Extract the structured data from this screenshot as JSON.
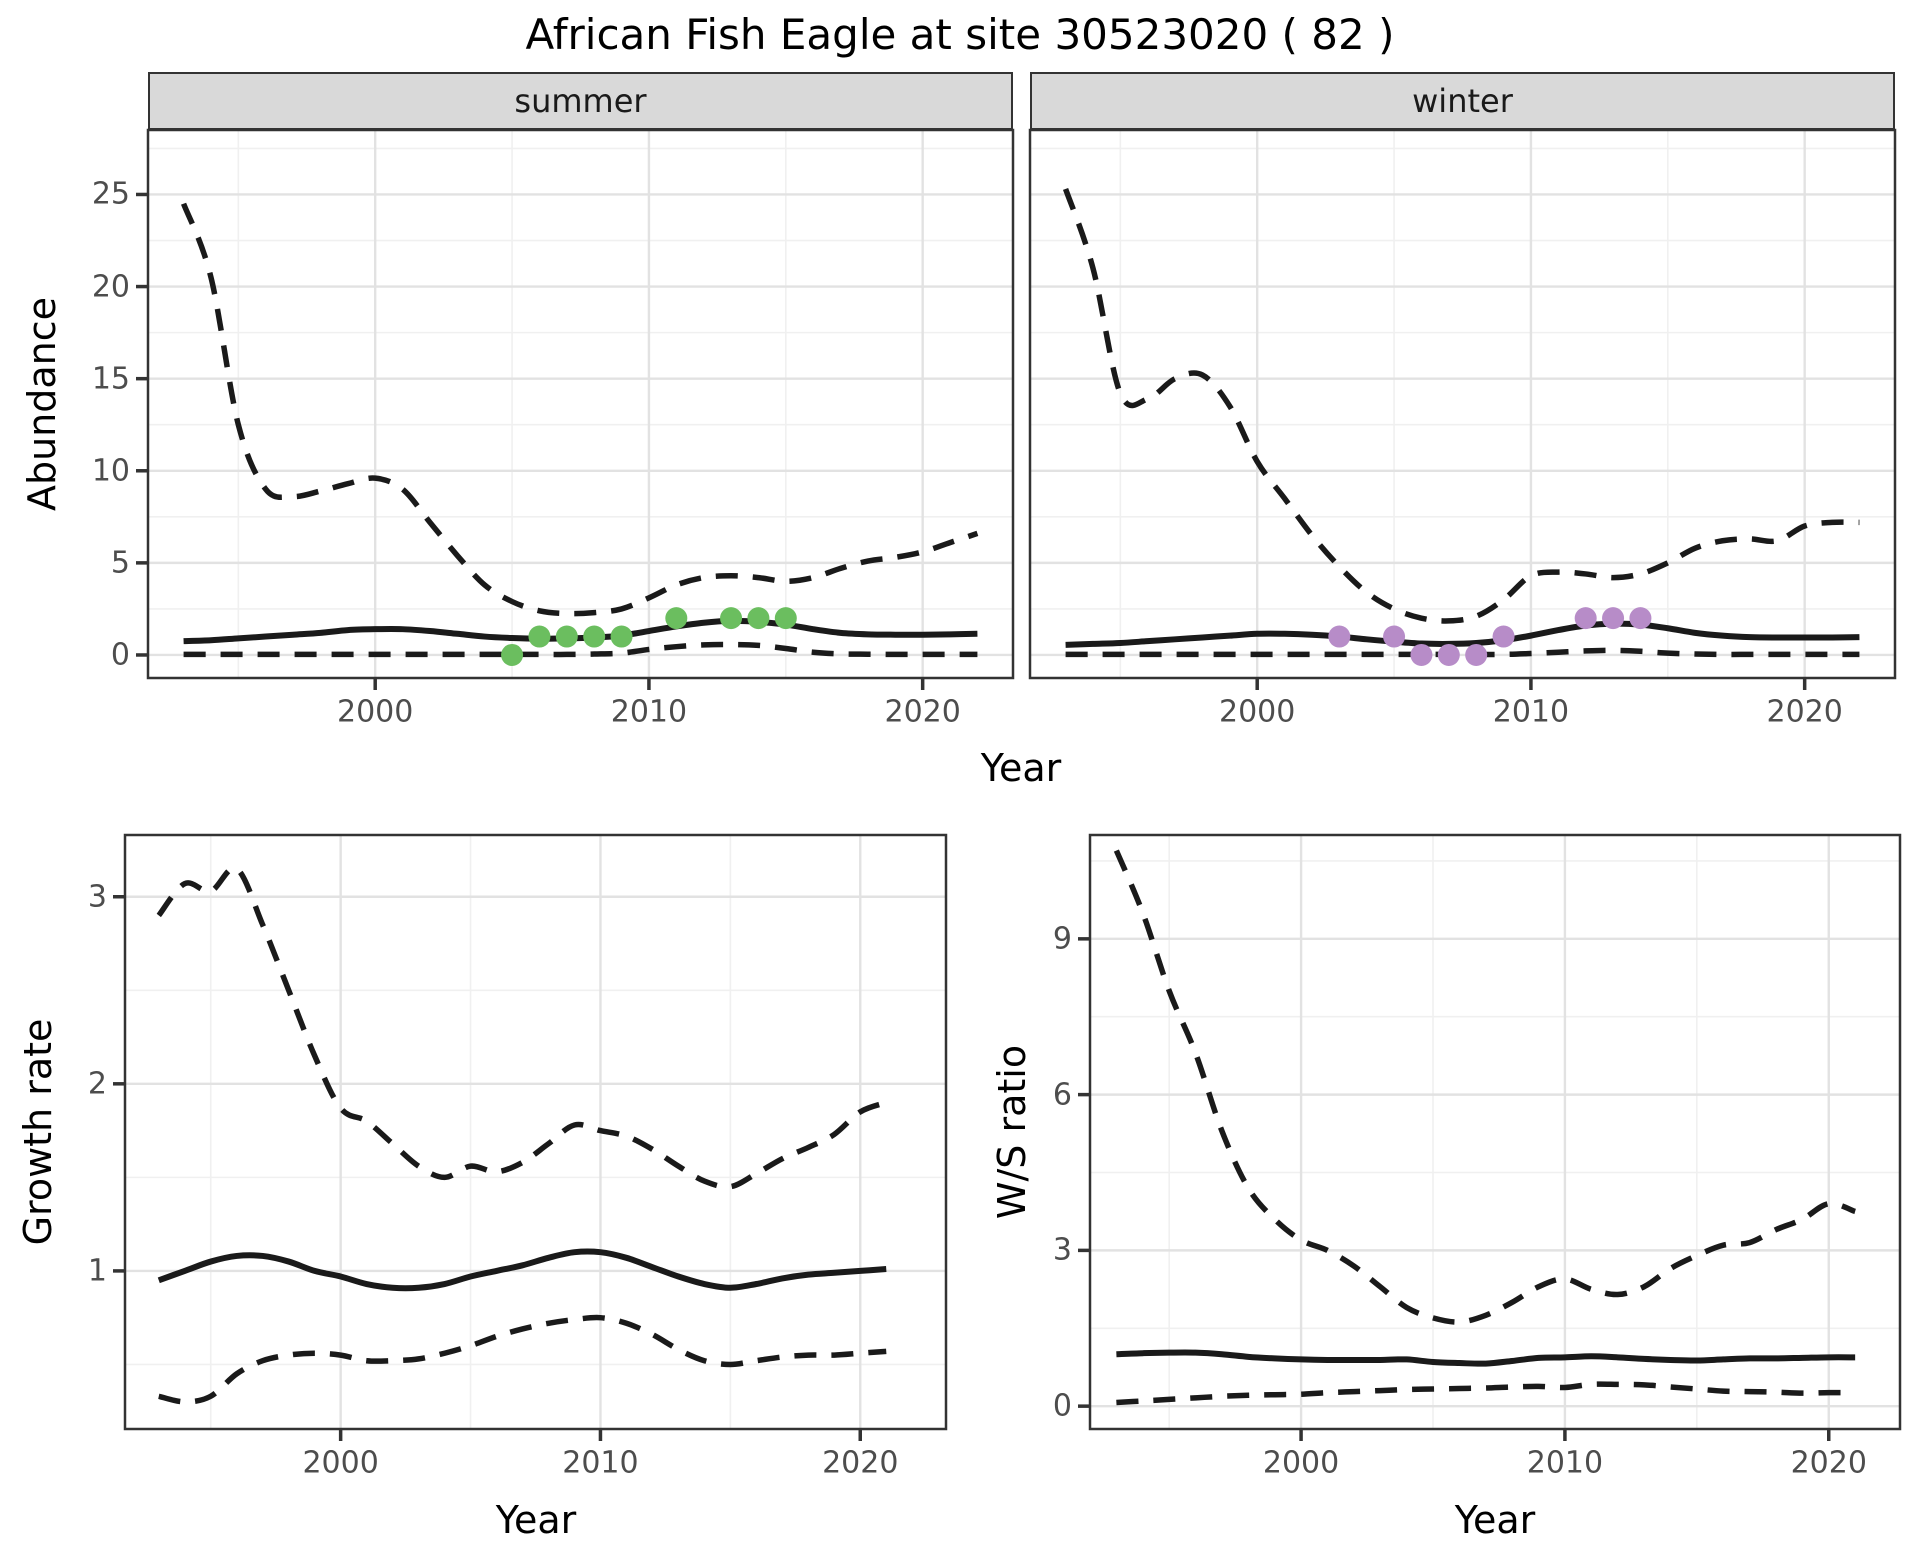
{
  "title": "African Fish Eagle at site 30523020 ( 82 )",
  "colors": {
    "summer_points": "#6bbe5f",
    "winter_points": "#b78cc8",
    "line": "#1a1a1a",
    "strip_background": "#d9d9d9",
    "tick_text": "#4d4d4d"
  },
  "chart_data": [
    {
      "type": "line",
      "panel": "abundance-summer",
      "facet_label": "summer",
      "ylabel": "Abundance",
      "xlabel": "Year",
      "line_color": "#1a1a1a",
      "xlim": [
        1991.7,
        2023.3
      ],
      "ylim": [
        -1.25,
        28.5
      ],
      "xticks": [
        2000,
        2010,
        2020
      ],
      "yticks": [
        0,
        5,
        10,
        15,
        20,
        25
      ],
      "x": [
        1993,
        1994,
        1995,
        1996,
        1997,
        1998,
        1999,
        2000,
        2001,
        2002,
        2003,
        2004,
        2005,
        2006,
        2007,
        2008,
        2009,
        2010,
        2011,
        2012,
        2013,
        2014,
        2015,
        2016,
        2017,
        2018,
        2019,
        2020,
        2021,
        2022
      ],
      "series": [
        {
          "name": "upper_ci",
          "style": "dashed",
          "values": [
            24.5,
            20.5,
            12.5,
            9.0,
            8.6,
            8.9,
            9.3,
            9.6,
            9.0,
            7.2,
            5.4,
            3.8,
            2.9,
            2.4,
            2.25,
            2.3,
            2.5,
            3.1,
            3.8,
            4.2,
            4.3,
            4.2,
            4.0,
            4.2,
            4.7,
            5.1,
            5.3,
            5.6,
            6.1,
            6.6
          ]
        },
        {
          "name": "mean",
          "style": "solid",
          "values": [
            0.75,
            0.8,
            0.9,
            1.0,
            1.1,
            1.2,
            1.35,
            1.4,
            1.4,
            1.3,
            1.15,
            1.0,
            0.92,
            0.88,
            0.9,
            0.95,
            1.05,
            1.3,
            1.55,
            1.75,
            1.85,
            1.8,
            1.65,
            1.4,
            1.2,
            1.12,
            1.1,
            1.1,
            1.12,
            1.15
          ]
        },
        {
          "name": "lower_ci",
          "style": "dashed",
          "values": [
            0.03,
            0.03,
            0.03,
            0.03,
            0.03,
            0.03,
            0.03,
            0.03,
            0.03,
            0.03,
            0.03,
            0.03,
            0.03,
            0.03,
            0.03,
            0.05,
            0.1,
            0.3,
            0.45,
            0.55,
            0.57,
            0.52,
            0.35,
            0.15,
            0.06,
            0.04,
            0.03,
            0.03,
            0.03,
            0.03
          ]
        }
      ],
      "points": {
        "name": "observed-counts-summer",
        "color": "#6bbe5f",
        "xy": [
          [
            2005,
            0
          ],
          [
            2006,
            1
          ],
          [
            2007,
            1
          ],
          [
            2008,
            1
          ],
          [
            2009,
            1
          ],
          [
            2011,
            2
          ],
          [
            2013,
            2
          ],
          [
            2014,
            2
          ],
          [
            2015,
            2
          ]
        ]
      }
    },
    {
      "type": "line",
      "panel": "abundance-winter",
      "facet_label": "winter",
      "ylabel": "Abundance",
      "xlabel": "Year",
      "line_color": "#1a1a1a",
      "xlim": [
        1991.7,
        2023.3
      ],
      "ylim": [
        -1.25,
        28.5
      ],
      "xticks": [
        2000,
        2010,
        2020
      ],
      "yticks": [
        0,
        5,
        10,
        15,
        20,
        25
      ],
      "x": [
        1993,
        1994,
        1995,
        1996,
        1997,
        1998,
        1999,
        2000,
        2001,
        2002,
        2003,
        2004,
        2005,
        2006,
        2007,
        2008,
        2009,
        2010,
        2011,
        2012,
        2013,
        2014,
        2015,
        2016,
        2017,
        2018,
        2019,
        2020,
        2021,
        2022
      ],
      "series": [
        {
          "name": "upper_ci",
          "style": "dashed",
          "values": [
            25.3,
            21.0,
            14.2,
            13.9,
            15.0,
            15.2,
            13.5,
            10.5,
            8.5,
            6.5,
            4.8,
            3.4,
            2.5,
            2.0,
            1.85,
            2.1,
            3.0,
            4.3,
            4.5,
            4.4,
            4.2,
            4.4,
            5.0,
            5.8,
            6.2,
            6.3,
            6.2,
            7.0,
            7.2,
            7.2
          ]
        },
        {
          "name": "mean",
          "style": "solid",
          "values": [
            0.55,
            0.6,
            0.65,
            0.75,
            0.85,
            0.95,
            1.05,
            1.15,
            1.15,
            1.1,
            1.0,
            0.85,
            0.72,
            0.62,
            0.6,
            0.65,
            0.8,
            1.05,
            1.35,
            1.6,
            1.7,
            1.65,
            1.45,
            1.2,
            1.05,
            0.97,
            0.95,
            0.95,
            0.95,
            0.97
          ]
        },
        {
          "name": "lower_ci",
          "style": "dashed",
          "values": [
            0.03,
            0.03,
            0.03,
            0.03,
            0.03,
            0.03,
            0.03,
            0.03,
            0.03,
            0.03,
            0.03,
            0.03,
            0.03,
            0.03,
            0.03,
            0.03,
            0.03,
            0.08,
            0.15,
            0.22,
            0.25,
            0.2,
            0.1,
            0.05,
            0.03,
            0.03,
            0.03,
            0.03,
            0.03,
            0.03
          ]
        }
      ],
      "points": {
        "name": "observed-counts-winter",
        "color": "#b78cc8",
        "xy": [
          [
            2003,
            1
          ],
          [
            2005,
            1
          ],
          [
            2006,
            0
          ],
          [
            2007,
            0
          ],
          [
            2008,
            0
          ],
          [
            2009,
            1
          ],
          [
            2012,
            2
          ],
          [
            2013,
            2
          ],
          [
            2014,
            2
          ]
        ]
      }
    },
    {
      "type": "line",
      "panel": "growth-rate",
      "facet_label": "",
      "ylabel": "Growth rate",
      "xlabel": "Year",
      "line_color": "#1a1a1a",
      "xlim": [
        1991.7,
        2023.3
      ],
      "ylim": [
        0.155,
        3.33
      ],
      "xticks": [
        2000,
        2010,
        2020
      ],
      "yticks": [
        1,
        2,
        3
      ],
      "x": [
        1993,
        1994,
        1995,
        1996,
        1997,
        1998,
        1999,
        2000,
        2001,
        2002,
        2003,
        2004,
        2005,
        2006,
        2007,
        2008,
        2009,
        2010,
        2011,
        2012,
        2013,
        2014,
        2015,
        2016,
        2017,
        2018,
        2019,
        2020,
        2021
      ],
      "series": [
        {
          "name": "upper_ci",
          "style": "dashed",
          "values": [
            2.9,
            3.07,
            3.03,
            3.15,
            2.85,
            2.5,
            2.15,
            1.87,
            1.8,
            1.68,
            1.56,
            1.5,
            1.56,
            1.53,
            1.58,
            1.68,
            1.78,
            1.75,
            1.72,
            1.65,
            1.56,
            1.48,
            1.45,
            1.52,
            1.6,
            1.66,
            1.73,
            1.85,
            1.9
          ]
        },
        {
          "name": "mean",
          "style": "solid",
          "values": [
            0.95,
            1.0,
            1.05,
            1.08,
            1.08,
            1.05,
            1.0,
            0.97,
            0.93,
            0.91,
            0.91,
            0.93,
            0.97,
            1.0,
            1.03,
            1.07,
            1.1,
            1.1,
            1.07,
            1.02,
            0.97,
            0.93,
            0.91,
            0.93,
            0.96,
            0.98,
            0.99,
            1.0,
            1.01
          ]
        },
        {
          "name": "lower_ci",
          "style": "dashed",
          "values": [
            0.33,
            0.3,
            0.33,
            0.45,
            0.52,
            0.55,
            0.56,
            0.55,
            0.52,
            0.52,
            0.53,
            0.56,
            0.6,
            0.65,
            0.69,
            0.72,
            0.74,
            0.75,
            0.72,
            0.66,
            0.58,
            0.52,
            0.5,
            0.52,
            0.54,
            0.55,
            0.55,
            0.56,
            0.57
          ]
        }
      ],
      "points": null
    },
    {
      "type": "line",
      "panel": "ws-ratio",
      "facet_label": "",
      "ylabel": "W/S ratio",
      "xlabel": "Year",
      "line_color": "#1a1a1a",
      "xlim": [
        1992.0,
        2022.7
      ],
      "ylim": [
        -0.44,
        11.0
      ],
      "xticks": [
        2000,
        2010,
        2020
      ],
      "yticks": [
        0,
        3,
        6,
        9
      ],
      "x": [
        1993,
        1994,
        1995,
        1996,
        1997,
        1998,
        1999,
        2000,
        2001,
        2002,
        2003,
        2004,
        2005,
        2006,
        2007,
        2008,
        2009,
        2010,
        2011,
        2012,
        2013,
        2014,
        2015,
        2016,
        2017,
        2018,
        2019,
        2020,
        2021
      ],
      "series": [
        {
          "name": "upper_ci",
          "style": "dashed",
          "values": [
            10.7,
            9.5,
            8.0,
            6.8,
            5.3,
            4.2,
            3.6,
            3.2,
            3.0,
            2.7,
            2.3,
            1.9,
            1.7,
            1.62,
            1.75,
            2.0,
            2.3,
            2.45,
            2.25,
            2.15,
            2.3,
            2.65,
            2.9,
            3.1,
            3.15,
            3.4,
            3.6,
            3.9,
            3.75
          ]
        },
        {
          "name": "mean",
          "style": "solid",
          "values": [
            1.0,
            1.02,
            1.03,
            1.03,
            1.0,
            0.95,
            0.92,
            0.9,
            0.89,
            0.89,
            0.89,
            0.9,
            0.85,
            0.83,
            0.82,
            0.87,
            0.93,
            0.94,
            0.96,
            0.94,
            0.91,
            0.89,
            0.88,
            0.9,
            0.92,
            0.92,
            0.93,
            0.94,
            0.94
          ]
        },
        {
          "name": "lower_ci",
          "style": "dashed",
          "values": [
            0.07,
            0.1,
            0.13,
            0.16,
            0.19,
            0.21,
            0.22,
            0.23,
            0.26,
            0.28,
            0.3,
            0.32,
            0.33,
            0.34,
            0.35,
            0.37,
            0.38,
            0.36,
            0.42,
            0.42,
            0.41,
            0.37,
            0.33,
            0.29,
            0.28,
            0.27,
            0.25,
            0.26,
            0.26
          ]
        }
      ],
      "points": null
    }
  ]
}
